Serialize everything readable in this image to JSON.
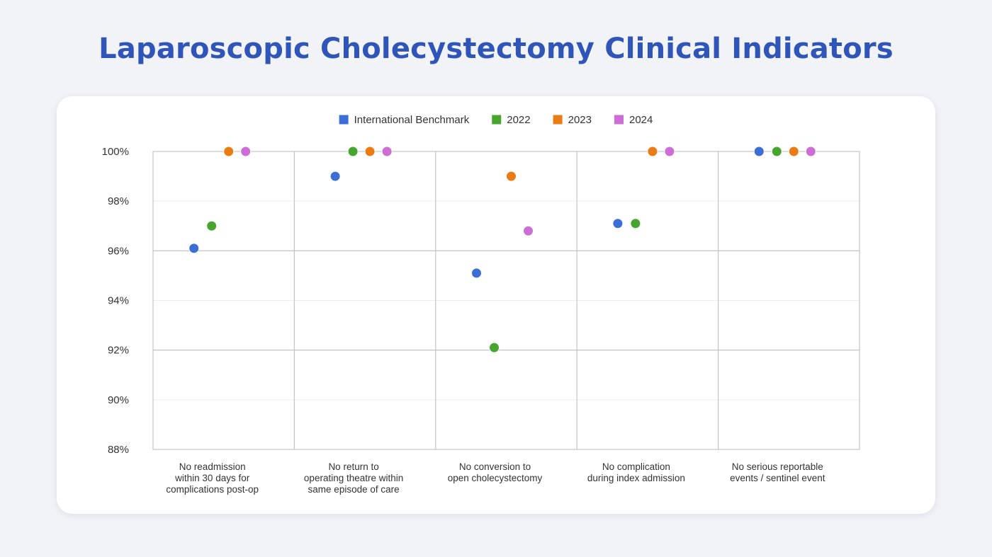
{
  "page": {
    "title": "Laparoscopic Cholecystectomy Clinical Indicators"
  },
  "chart_data": {
    "type": "scatter",
    "title": "Laparoscopic Cholecystectomy Clinical Indicators",
    "xlabel": "",
    "ylabel": "",
    "ylim": [
      88,
      100
    ],
    "y_ticks": [
      88,
      90,
      92,
      94,
      96,
      98,
      100
    ],
    "y_tick_labels": [
      "88%",
      "90%",
      "92%",
      "94%",
      "96%",
      "98%",
      "100%"
    ],
    "grid": true,
    "legend_position": "top-center",
    "categories": [
      [
        "No readmission",
        "within 30 days for",
        "complications post-op"
      ],
      [
        "No return to",
        "operating theatre within",
        "same episode of care"
      ],
      [
        "No conversion to",
        "open cholecystectomy"
      ],
      [
        "No complication",
        "during index admission"
      ],
      [
        "No serious reportable",
        "events / sentinel event"
      ]
    ],
    "series": [
      {
        "name": "International Benchmark",
        "color": "#3b6fd6",
        "values": [
          96.1,
          99.0,
          95.1,
          97.1,
          100
        ]
      },
      {
        "name": "2022",
        "color": "#46a52f",
        "values": [
          97.0,
          100,
          92.1,
          97.1,
          100
        ]
      },
      {
        "name": "2023",
        "color": "#eb7b14",
        "values": [
          100,
          100,
          99.0,
          100,
          100
        ]
      },
      {
        "name": "2024",
        "color": "#cc6ed6",
        "values": [
          100,
          100,
          96.8,
          100,
          100
        ]
      }
    ]
  }
}
